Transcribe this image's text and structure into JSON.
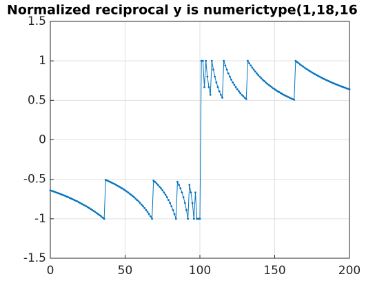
{
  "chart_data": {
    "type": "line",
    "title": "Normalized reciprocal y is numerictype(1,18,16",
    "x": [
      0,
      1,
      2,
      3,
      4,
      5,
      6,
      7,
      8,
      9,
      10,
      11,
      12,
      13,
      14,
      15,
      16,
      17,
      18,
      19,
      20,
      21,
      22,
      23,
      24,
      25,
      26,
      27,
      28,
      29,
      30,
      31,
      32,
      33,
      34,
      35,
      36,
      37,
      38,
      39,
      40,
      41,
      42,
      43,
      44,
      45,
      46,
      47,
      48,
      49,
      50,
      51,
      52,
      53,
      54,
      55,
      56,
      57,
      58,
      59,
      60,
      61,
      62,
      63,
      64,
      65,
      66,
      67,
      68,
      69,
      70,
      71,
      72,
      73,
      74,
      75,
      76,
      77,
      78,
      79,
      80,
      81,
      82,
      83,
      84,
      85,
      86,
      87,
      88,
      89,
      90,
      91,
      92,
      93,
      94,
      95,
      96,
      97,
      98,
      99,
      100,
      101,
      102,
      103,
      104,
      105,
      106,
      107,
      108,
      109,
      110,
      111,
      112,
      113,
      114,
      115,
      116,
      117,
      118,
      119,
      120,
      121,
      122,
      123,
      124,
      125,
      126,
      127,
      128,
      129,
      130,
      131,
      132,
      133,
      134,
      135,
      136,
      137,
      138,
      139,
      140,
      141,
      142,
      143,
      144,
      145,
      146,
      147,
      148,
      149,
      150,
      151,
      152,
      153,
      154,
      155,
      156,
      157,
      158,
      159,
      160,
      161,
      162,
      163,
      164,
      165,
      166,
      167,
      168,
      169,
      170,
      171,
      172,
      173,
      174,
      175,
      176,
      177,
      178,
      179,
      180,
      181,
      182,
      183,
      184,
      185,
      186,
      187,
      188,
      189,
      190,
      191,
      192,
      193,
      194,
      195,
      196,
      197,
      198,
      199,
      200
    ],
    "series": [
      {
        "color": "#0072bd",
        "values": [
          -0.64,
          -0.646,
          -0.653,
          -0.66,
          -0.667,
          -0.674,
          -0.681,
          -0.688,
          -0.696,
          -0.703,
          -0.711,
          -0.719,
          -0.727,
          -0.736,
          -0.744,
          -0.753,
          -0.762,
          -0.771,
          -0.78,
          -0.79,
          -0.8,
          -0.81,
          -0.821,
          -0.831,
          -0.842,
          -0.853,
          -0.865,
          -0.877,
          -0.889,
          -0.901,
          -0.914,
          -0.928,
          -0.941,
          -0.955,
          -0.97,
          -0.985,
          -1,
          -0.508,
          -0.516,
          -0.525,
          -0.533,
          -0.542,
          -0.552,
          -0.561,
          -0.571,
          -0.582,
          -0.593,
          -0.604,
          -0.615,
          -0.627,
          -0.64,
          -0.653,
          -0.667,
          -0.681,
          -0.696,
          -0.711,
          -0.727,
          -0.744,
          -0.762,
          -0.78,
          -0.8,
          -0.821,
          -0.842,
          -0.865,
          -0.889,
          -0.914,
          -0.941,
          -0.97,
          -1,
          -0.516,
          -0.533,
          -0.552,
          -0.571,
          -0.593,
          -0.615,
          -0.64,
          -0.667,
          -0.696,
          -0.727,
          -0.762,
          -0.8,
          -0.842,
          -0.889,
          -0.941,
          -1,
          -0.533,
          -0.571,
          -0.615,
          -0.667,
          -0.727,
          -0.8,
          -0.889,
          -1,
          -0.571,
          -0.667,
          -0.8,
          -1,
          -0.667,
          -1,
          -1,
          -1,
          1,
          1,
          0.667,
          1,
          0.8,
          0.667,
          0.571,
          1,
          0.889,
          0.8,
          0.727,
          0.667,
          0.615,
          0.571,
          0.533,
          1,
          0.941,
          0.889,
          0.842,
          0.8,
          0.762,
          0.727,
          0.696,
          0.667,
          0.64,
          0.615,
          0.593,
          0.571,
          0.552,
          0.533,
          0.516,
          1,
          0.97,
          0.941,
          0.914,
          0.889,
          0.865,
          0.842,
          0.821,
          0.8,
          0.78,
          0.762,
          0.744,
          0.727,
          0.711,
          0.696,
          0.681,
          0.667,
          0.653,
          0.64,
          0.627,
          0.615,
          0.604,
          0.593,
          0.582,
          0.571,
          0.561,
          0.552,
          0.542,
          0.533,
          0.525,
          0.516,
          0.508,
          1,
          0.985,
          0.97,
          0.955,
          0.941,
          0.928,
          0.914,
          0.901,
          0.889,
          0.877,
          0.865,
          0.853,
          0.842,
          0.831,
          0.821,
          0.81,
          0.8,
          0.79,
          0.78,
          0.771,
          0.762,
          0.753,
          0.744,
          0.736,
          0.727,
          0.719,
          0.711,
          0.703,
          0.696,
          0.688,
          0.681,
          0.674,
          0.667,
          0.66,
          0.653,
          0.646,
          0.64
        ]
      }
    ],
    "xlim": [
      0,
      200
    ],
    "xticks": [
      0,
      50,
      100,
      150,
      200
    ],
    "ylim": [
      -1.5,
      1.5
    ],
    "yticks": [
      -1.5,
      -1,
      -0.5,
      0,
      0.5,
      1,
      1.5
    ],
    "grid": true
  }
}
